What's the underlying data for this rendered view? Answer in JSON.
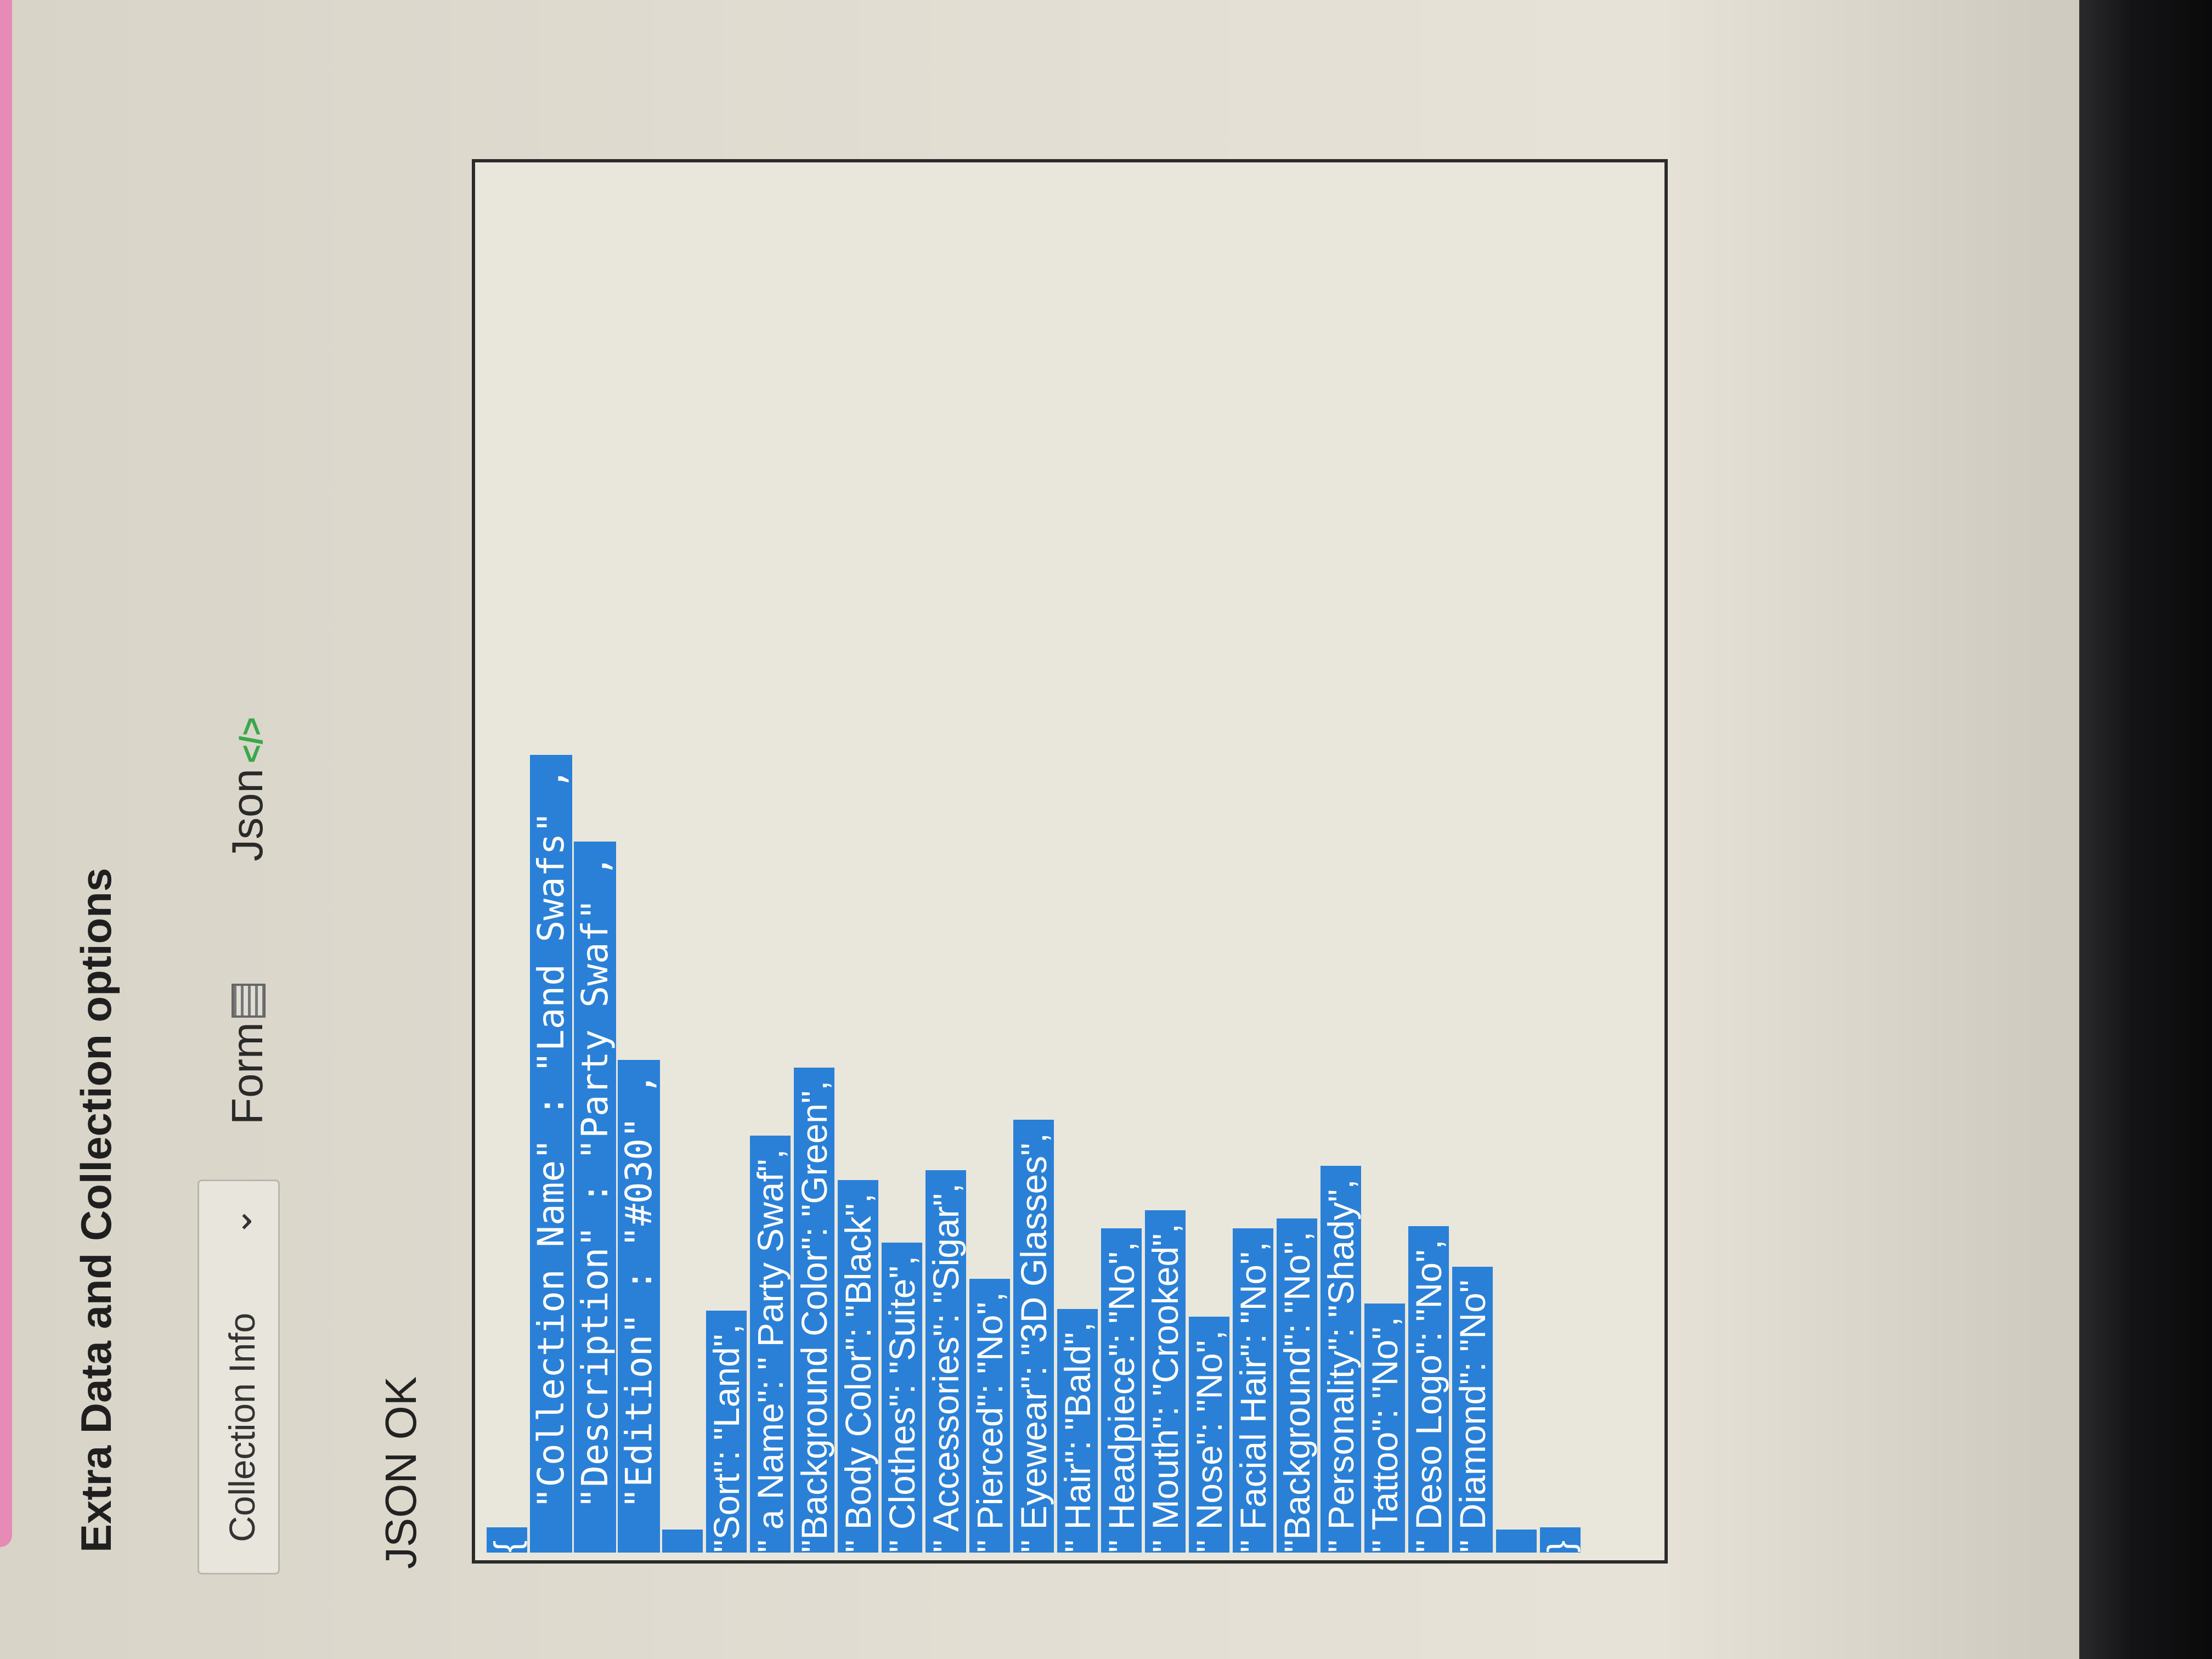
{
  "page": {
    "title": "Extra Data and Collection options"
  },
  "selector": {
    "value": "Collection Info"
  },
  "modes": {
    "form_label": "Form",
    "json_label": "Json"
  },
  "status": "JSON OK",
  "icons": {
    "chevron": "chevron-down-icon",
    "form": "table-icon",
    "json": "code-icon"
  },
  "colors": {
    "selection": "#2a7fd6",
    "json_icon": "#3aa84a",
    "accent_tab": "#e78bb6"
  },
  "json_lines": [
    "{",
    "  \"Collection Name\" : \"Land Swafs\" ,",
    "  \"Description\" : \"Party Swaf\" ,",
    "  \"Edition\" : \"#030\" ,",
    "",
    "\"Sort\": \"Land\",",
    "\" a Name\": \" Party Swaf\",",
    "\"Background Color\": \"Green\",",
    "\" Body Color\": \"Black\",",
    "\" Clothes\": \"Suite\",",
    "\" Accessories\": \"Sigar\",",
    "\" Pierced\": \"No\",",
    "\" Eyewear\": \"3D Glasses\",",
    "\" Hair\": \"Bald\",",
    "\" Headpiece\": \"No\",",
    "\" Mouth\": \"Crooked\",",
    "\" Nose\": \"No\",",
    "\" Facial Hair\": \"No\",",
    "\"Background\": \"No\",",
    "\" Personality\": \"Shady\",",
    "\" Tattoo\": \"No\",",
    "\" Deso Logo\": \"No\",",
    "\" Diamond\": \"No\"",
    "",
    "}"
  ]
}
